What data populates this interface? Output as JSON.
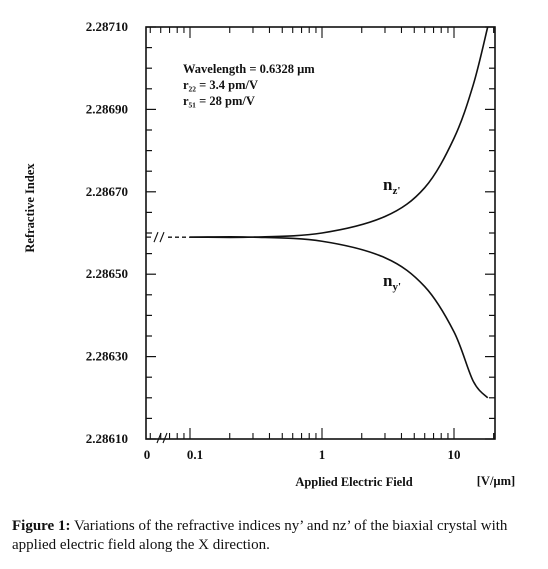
{
  "chart_data": {
    "type": "line",
    "xlabel": "Applied Electric Field",
    "xunit": "[V/µm]",
    "ylabel": "Refractive Index",
    "x_scale": "log",
    "x_ticklabels": [
      "0",
      "0.1",
      "1",
      "10"
    ],
    "y_ticklabels": [
      "2.28610",
      "2.28630",
      "2.28650",
      "2.28670",
      "2.28690",
      "2.28710"
    ],
    "ylim": [
      2.2861,
      2.2871
    ],
    "xlim": [
      0.05,
      20
    ],
    "annotations": [
      "Wavelength = 0.6328 µm",
      "r₂₂ = 3.4 pm/V",
      "r₅₁ = 28 pm/V"
    ],
    "series": [
      {
        "name": "nz'",
        "x": [
          0.05,
          0.1,
          0.3,
          1,
          3,
          6,
          10,
          14,
          18
        ],
        "y": [
          2.28659,
          2.28659,
          2.28659,
          2.2866,
          2.28664,
          2.28671,
          2.28683,
          2.28696,
          2.2871
        ]
      },
      {
        "name": "ny'",
        "x": [
          0.05,
          0.1,
          0.3,
          1,
          3,
          6,
          10,
          14,
          18
        ],
        "y": [
          2.28659,
          2.28659,
          2.28659,
          2.28658,
          2.28654,
          2.28647,
          2.28636,
          2.28624,
          2.2862
        ]
      }
    ],
    "series_display": [
      "n",
      "n"
    ],
    "series_subscripts": [
      "z'",
      "y'"
    ],
    "grid": false
  },
  "caption": {
    "figure_label": "Figure 1:",
    "text": "Variations of the refractive indices ny’ and nz’ of the biaxial crystal with applied electric field along the X direction."
  }
}
